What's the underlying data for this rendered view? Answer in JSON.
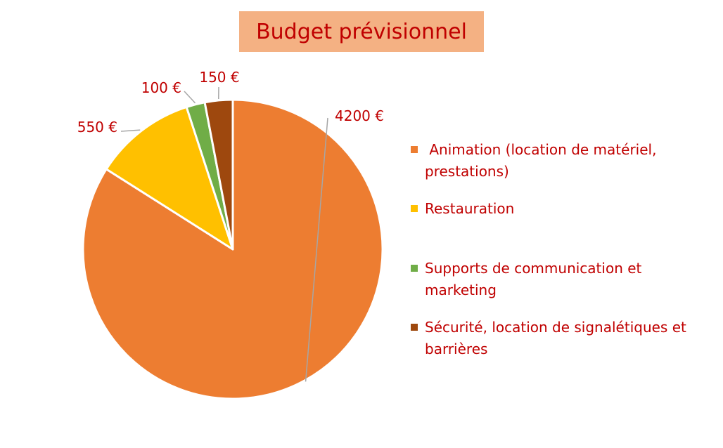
{
  "chart_data": {
    "type": "pie",
    "title": "Budget prévisionnel",
    "categories": [
      " Animation (location de matériel, prestations)",
      "Restauration",
      "Supports de communication et marketing",
      "Sécurité, location de signalétiques et barrières"
    ],
    "values": [
      4200,
      550,
      100,
      150
    ],
    "data_labels": [
      "4200 €",
      "550 €",
      "100 €",
      "150 €"
    ],
    "colors": [
      "#ed7d31",
      "#ffc000",
      "#70ad47",
      "#9e480e"
    ],
    "legend_position": "right",
    "text_color": "#c00000",
    "title_background": "#f4b183",
    "leader_line_color": "#a6a6a6"
  }
}
